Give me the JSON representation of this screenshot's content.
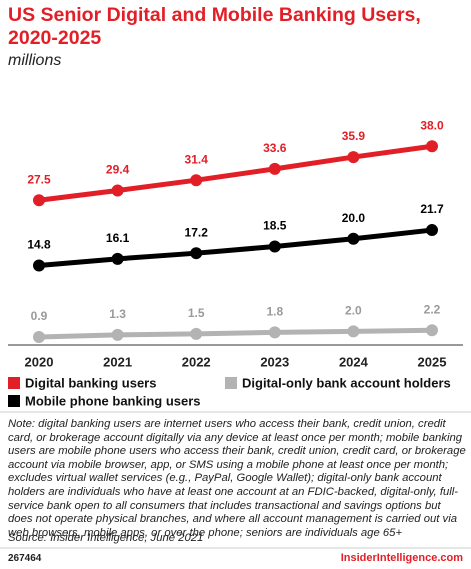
{
  "chart_data": {
    "type": "line",
    "title": "US Senior Digital and Mobile Banking Users, 2020-2025",
    "subtitle": "millions",
    "categories": [
      "2020",
      "2021",
      "2022",
      "2023",
      "2024",
      "2025"
    ],
    "ylim": [
      0,
      40
    ],
    "series": [
      {
        "name": "Digital banking users",
        "color": "#e21f26",
        "label_color": "#e21f26",
        "values": [
          27.5,
          29.4,
          31.4,
          33.6,
          35.9,
          38.0
        ],
        "value_labels": [
          "27.5",
          "29.4",
          "31.4",
          "33.6",
          "35.9",
          "38.0"
        ]
      },
      {
        "name": "Mobile phone banking users",
        "color": "#000000",
        "label_color": "#000000",
        "values": [
          14.8,
          16.1,
          17.2,
          18.5,
          20.0,
          21.7
        ],
        "value_labels": [
          "14.8",
          "16.1",
          "17.2",
          "18.5",
          "20.0",
          "21.7"
        ]
      },
      {
        "name": "Digital-only bank account holders",
        "color": "#b3b3b3",
        "label_color": "#9a9a9a",
        "values": [
          0.9,
          1.3,
          1.5,
          1.8,
          2.0,
          2.2
        ],
        "value_labels": [
          "0.9",
          "1.3",
          "1.5",
          "1.8",
          "2.0",
          "2.2"
        ]
      }
    ],
    "note": "Note: digital banking users are internet users who access their bank, credit union, credit card, or brokerage account digitally via any device at least once per month; mobile banking users are mobile phone users who access their bank, credit union, credit card, or brokerage account via mobile browser, app, or SMS using a mobile phone at least once per month; excludes virtual wallet services (e.g., PayPal, Google Wallet); digital-only bank account holders are individuals who have at least one account at an FDIC-backed, digital-only, full-service bank open to all consumers that includes transactional and savings options but does not operate physical branches, and where all account management is carried out via web browsers, mobile apps, or over the phone; seniors are individuals age 65+",
    "source": "Source: Insider Intelligence, June 2021",
    "chart_id": "267464",
    "brand": "InsiderIntelligence.com"
  }
}
